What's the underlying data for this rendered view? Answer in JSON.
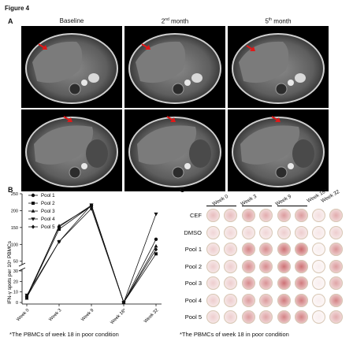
{
  "figure_title": "Figure 4",
  "panelA": {
    "letter": "A",
    "columns": [
      {
        "label_pre": "Baseline",
        "sup": "",
        "label_post": ""
      },
      {
        "label_pre": "2",
        "sup": "nd",
        "label_post": " month"
      },
      {
        "label_pre": "5",
        "sup": "th",
        "label_post": " month"
      }
    ]
  },
  "panelB": {
    "letter": "B",
    "footnote": "*The PBMCs of week 18 in poor condition",
    "chart_data": {
      "type": "line",
      "categories": [
        "Week 0",
        "Week 3",
        "Week 9",
        "Week 18*",
        "Week 32"
      ],
      "ylabel": "IFN-γ spots per 10⁵ PBMCs",
      "y_ticks_lower": [
        "0",
        "10",
        "20",
        "30"
      ],
      "y_ticks_upper": [
        "50",
        "100",
        "150",
        "200",
        "250"
      ],
      "series": [
        {
          "name": "Pool 1",
          "values": [
            6,
            152,
            216,
            0,
            115
          ]
        },
        {
          "name": "Pool 2",
          "values": [
            5,
            145,
            214,
            0,
            72
          ]
        },
        {
          "name": "Pool 3",
          "values": [
            4,
            155,
            213,
            0,
            95
          ]
        },
        {
          "name": "Pool 4",
          "values": [
            7,
            108,
            217,
            0,
            190
          ]
        },
        {
          "name": "Pool 5",
          "values": [
            5,
            108,
            206,
            0,
            85
          ]
        }
      ]
    }
  },
  "panelC": {
    "letter": "C",
    "footnote": "*The PBMCs of week 18 in poor condition",
    "weeks": [
      "Week 0",
      "Week 3",
      "Week 9",
      "Week 18*",
      "Week 32"
    ],
    "rows": [
      "CEF",
      "DMSO",
      "Pool 1",
      "Pool 2",
      "Pool 3",
      "Pool 4",
      "Pool 5"
    ]
  }
}
